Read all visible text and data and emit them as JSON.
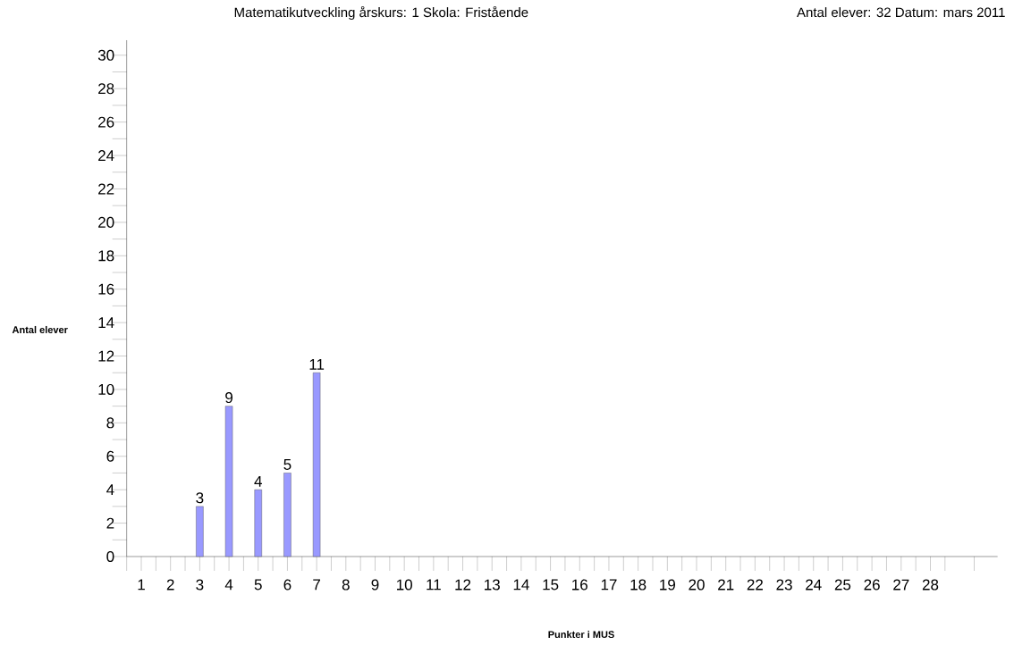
{
  "chart_data": {
    "type": "bar",
    "title": "Matematikutveckling årskurs: 1   Skola: Fristående",
    "subtitle": "Antal elever: 32  Datum: mars 2011",
    "xlabel": "Punkter i MUS",
    "ylabel": "Antal elever",
    "categories": [
      "1",
      "2",
      "3",
      "4",
      "5",
      "6",
      "7",
      "8",
      "9",
      "10",
      "11",
      "12",
      "13",
      "14",
      "15",
      "16",
      "17",
      "18",
      "19",
      "20",
      "21",
      "22",
      "23",
      "24",
      "25",
      "26",
      "27",
      "28"
    ],
    "values": [
      null,
      null,
      3,
      9,
      4,
      5,
      11,
      null,
      null,
      null,
      null,
      null,
      null,
      null,
      null,
      null,
      null,
      null,
      null,
      null,
      null,
      null,
      null,
      null,
      null,
      null,
      null,
      null
    ],
    "value_labels": [
      null,
      null,
      "3",
      "9",
      "4",
      "5",
      "11",
      null,
      null,
      null,
      null,
      null,
      null,
      null,
      null,
      null,
      null,
      null,
      null,
      null,
      null,
      null,
      null,
      null,
      null,
      null,
      null,
      null
    ],
    "color": "#9999ff",
    "ylim": [
      0,
      30.9
    ],
    "yticks": [
      0,
      2,
      4,
      6,
      8,
      10,
      12,
      14,
      16,
      18,
      20,
      22,
      24,
      26,
      28,
      30
    ],
    "grid": false
  }
}
